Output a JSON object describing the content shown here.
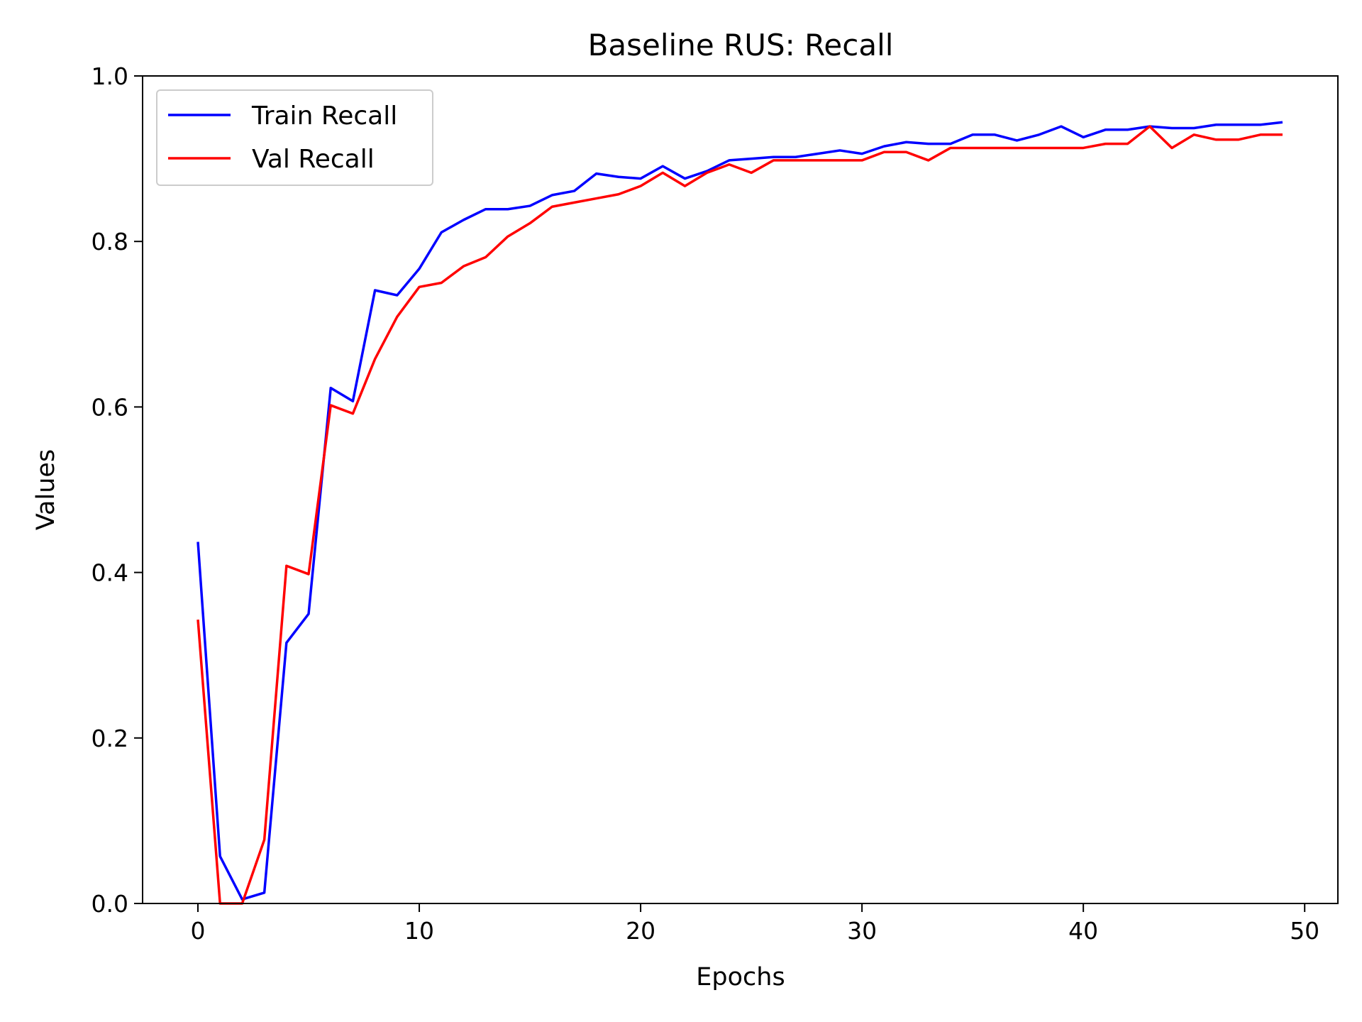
{
  "chart_data": {
    "type": "line",
    "title": "Baseline RUS: Recall",
    "xlabel": "Epochs",
    "ylabel": "Values",
    "xlim": [
      -2.5,
      51.5
    ],
    "ylim": [
      0,
      1
    ],
    "xticks": [
      0,
      10,
      20,
      30,
      40,
      50
    ],
    "yticks": [
      0.0,
      0.2,
      0.4,
      0.6,
      0.8,
      1.0
    ],
    "xtick_labels": [
      "0",
      "10",
      "20",
      "30",
      "40",
      "50"
    ],
    "ytick_labels": [
      "0.0",
      "0.2",
      "0.4",
      "0.6",
      "0.8",
      "1.0"
    ],
    "grid": false,
    "legend_position": "upper-left",
    "x": [
      0,
      1,
      2,
      3,
      4,
      5,
      6,
      7,
      8,
      9,
      10,
      11,
      12,
      13,
      14,
      15,
      16,
      17,
      18,
      19,
      20,
      21,
      22,
      23,
      24,
      25,
      26,
      27,
      28,
      29,
      30,
      31,
      32,
      33,
      34,
      35,
      36,
      37,
      38,
      39,
      40,
      41,
      42,
      43,
      44,
      45,
      46,
      47,
      48,
      49
    ],
    "series": [
      {
        "name": "Train Recall",
        "color": "#0000ff",
        "values": [
          0.437,
          0.057,
          0.005,
          0.013,
          0.315,
          0.35,
          0.623,
          0.607,
          0.741,
          0.735,
          0.767,
          0.811,
          0.826,
          0.839,
          0.839,
          0.843,
          0.856,
          0.861,
          0.882,
          0.878,
          0.876,
          0.891,
          0.876,
          0.885,
          0.898,
          0.9,
          0.902,
          0.902,
          0.906,
          0.91,
          0.906,
          0.915,
          0.92,
          0.918,
          0.918,
          0.929,
          0.929,
          0.922,
          0.929,
          0.939,
          0.926,
          0.935,
          0.935,
          0.939,
          0.937,
          0.937,
          0.941,
          0.941,
          0.941,
          0.944
        ]
      },
      {
        "name": "Val Recall",
        "color": "#ff0000",
        "values": [
          0.343,
          0.0,
          0.0,
          0.077,
          0.408,
          0.398,
          0.602,
          0.592,
          0.658,
          0.709,
          0.745,
          0.75,
          0.77,
          0.781,
          0.806,
          0.822,
          0.842,
          0.847,
          0.852,
          0.857,
          0.867,
          0.883,
          0.867,
          0.883,
          0.893,
          0.883,
          0.898,
          0.898,
          0.898,
          0.898,
          0.898,
          0.908,
          0.908,
          0.898,
          0.913,
          0.913,
          0.913,
          0.913,
          0.913,
          0.913,
          0.913,
          0.918,
          0.918,
          0.939,
          0.913,
          0.929,
          0.923,
          0.923,
          0.929,
          0.929
        ]
      }
    ]
  }
}
